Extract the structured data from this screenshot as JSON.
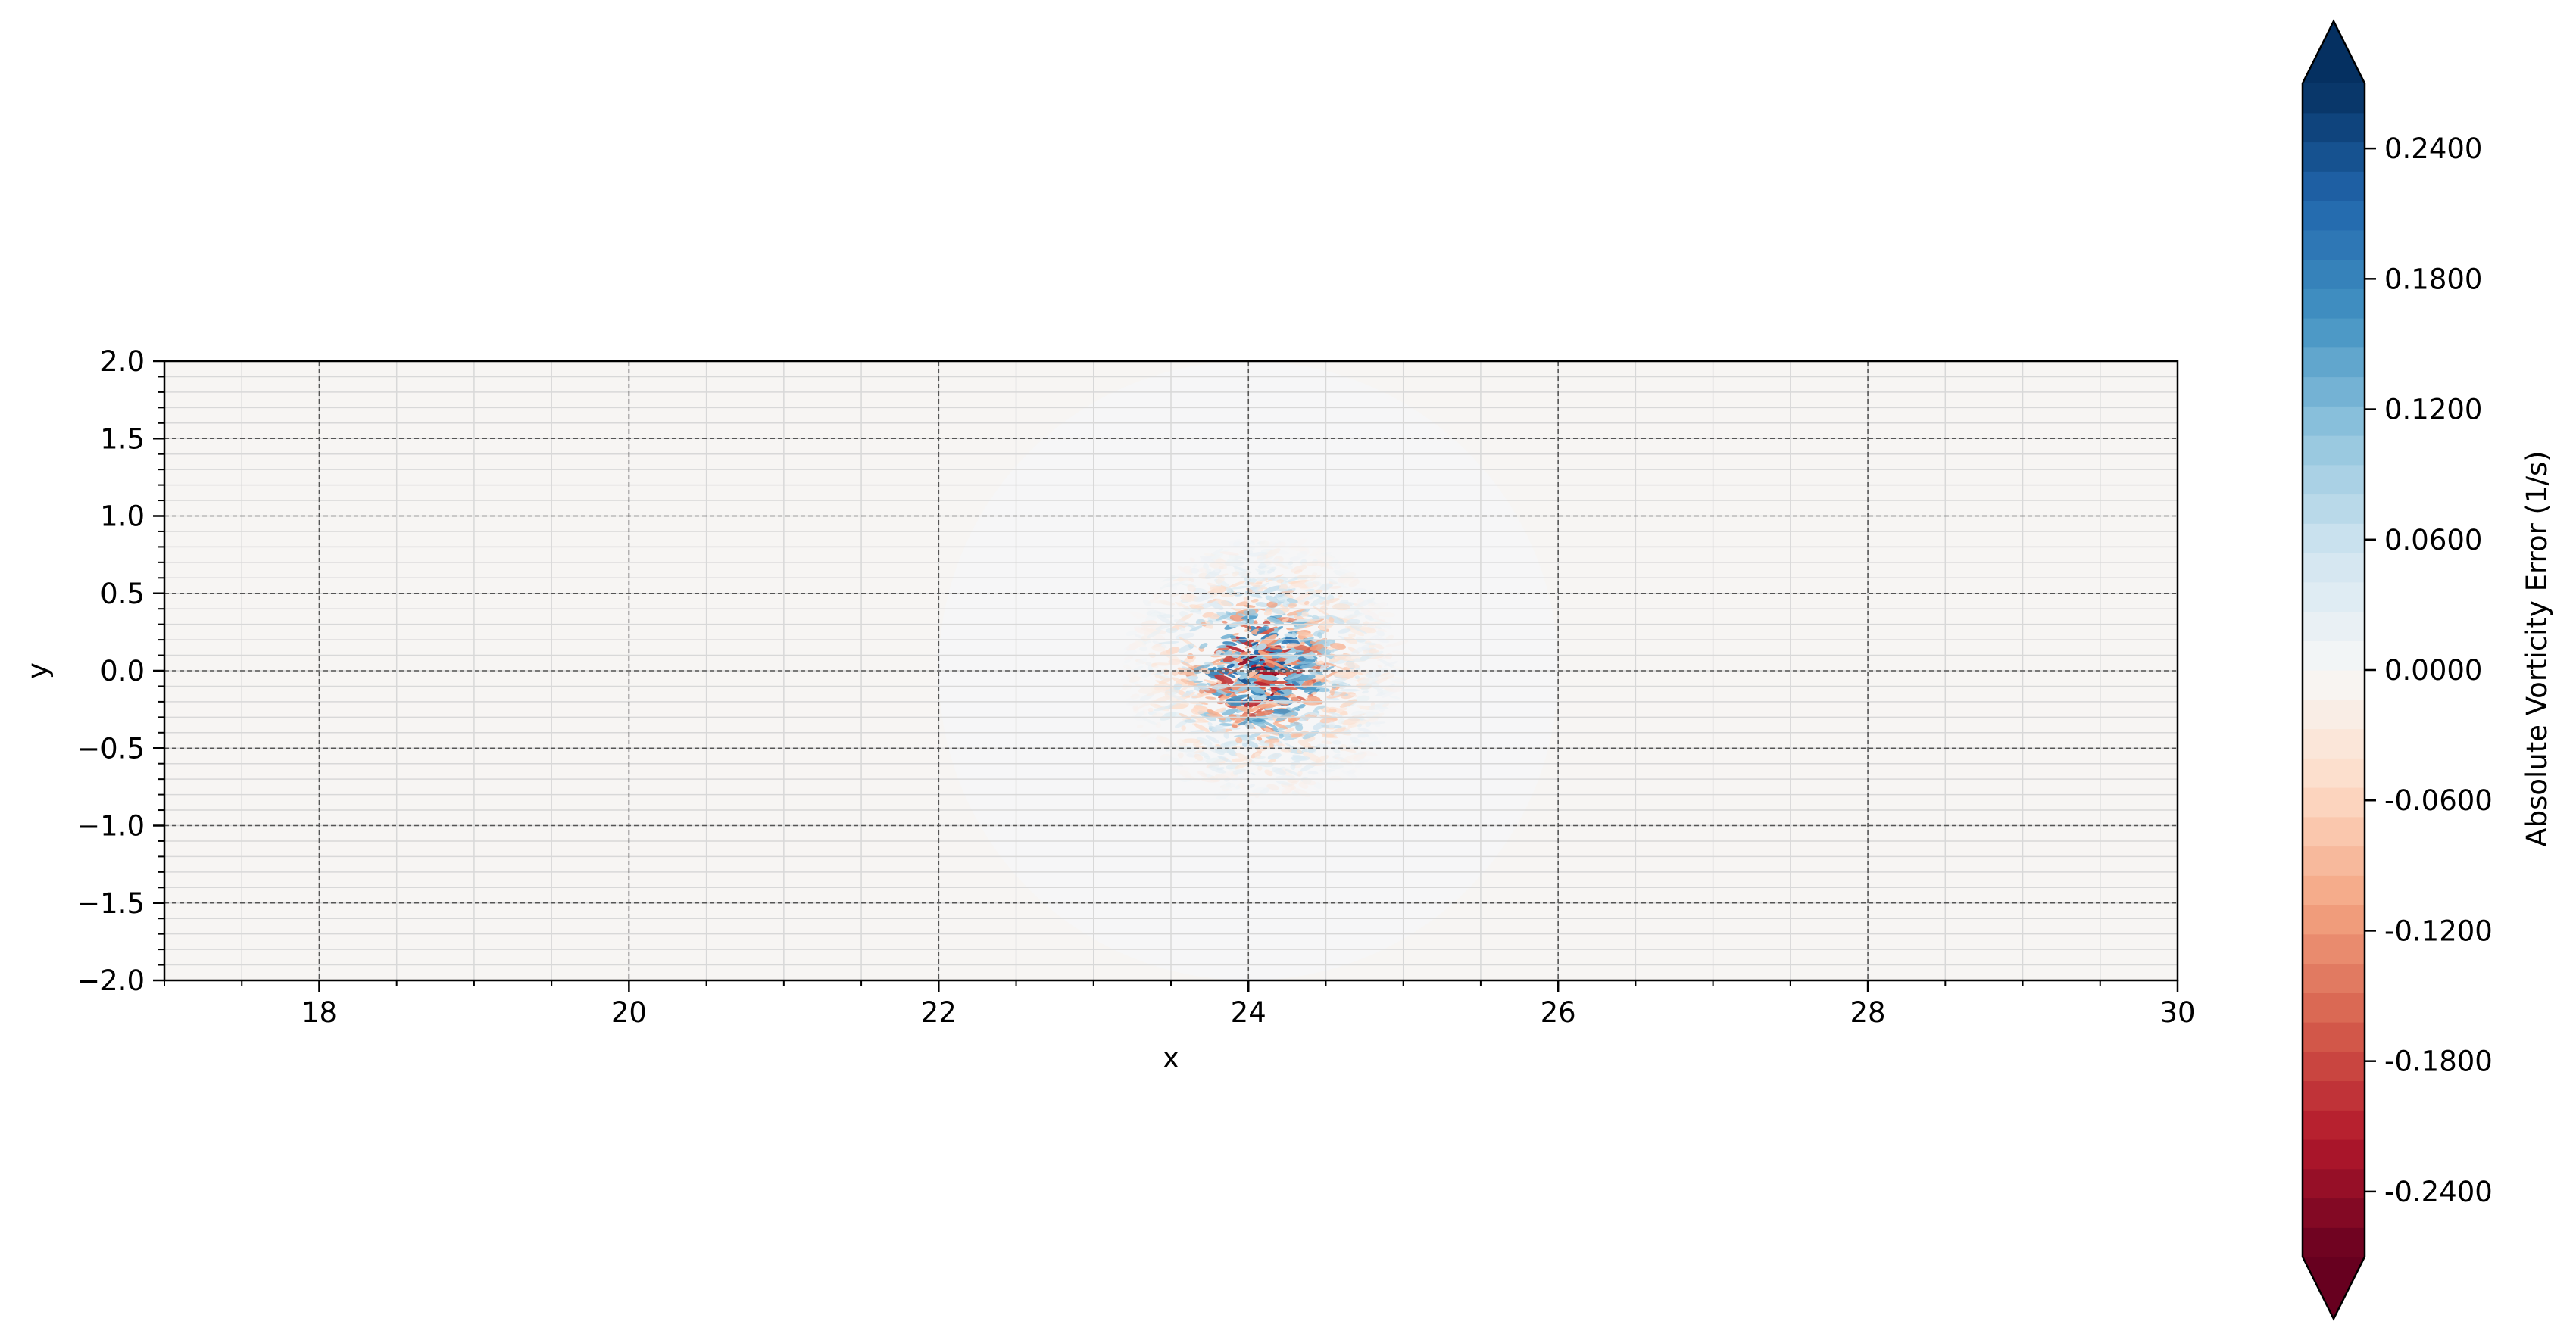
{
  "chart_data": {
    "type": "heatmap",
    "xlabel": "x",
    "ylabel": "y",
    "xlim": [
      17.0,
      30.0
    ],
    "ylim": [
      -2.0,
      2.0
    ],
    "x_ticks": [
      18,
      20,
      22,
      24,
      26,
      28,
      30
    ],
    "x_tick_labels": [
      "18",
      "20",
      "22",
      "24",
      "26",
      "28",
      "30"
    ],
    "y_ticks": [
      2.0,
      1.5,
      1.0,
      0.5,
      0.0,
      -0.5,
      -1.0,
      -1.5,
      -2.0
    ],
    "y_tick_labels": [
      "2.0",
      "1.5",
      "1.0",
      "0.5",
      "0.0",
      "−0.5",
      "−1.0",
      "−1.5",
      "−2.0"
    ],
    "grid": true,
    "aspect": "equal",
    "colormap": "RdBu",
    "colorbar": {
      "label": "Absolute Vorticity Error (1/s)",
      "range": [
        -0.27,
        0.27
      ],
      "levels": 40,
      "extend": "both",
      "ticks": [
        0.24,
        0.18,
        0.12,
        0.06,
        0.0,
        -0.06,
        -0.12,
        -0.18,
        -0.24
      ],
      "tick_labels": [
        "0.2400",
        "0.1800",
        "0.1200",
        "0.0600",
        "0.0000",
        "-0.0600",
        "-0.1200",
        "-0.1800",
        "-0.2400"
      ]
    },
    "features": [
      {
        "kind": "background_field",
        "value": -0.004,
        "note": "near-zero everywhere"
      },
      {
        "kind": "faint_disc",
        "center": [
          24.0,
          0.0
        ],
        "radius": 2.0,
        "value": 0.003
      },
      {
        "kind": "error_cluster",
        "center": [
          24.1,
          0.0
        ],
        "rx": 0.9,
        "ry": 0.85,
        "peak_abs": 0.27
      }
    ],
    "colors": {
      "neg_peak": "#67001f",
      "pos_peak": "#053061",
      "zero": "#f7f7f7",
      "background": "#f6f2ef",
      "grid_major": "#555555",
      "grid_minor": "#d8d8d8"
    }
  }
}
